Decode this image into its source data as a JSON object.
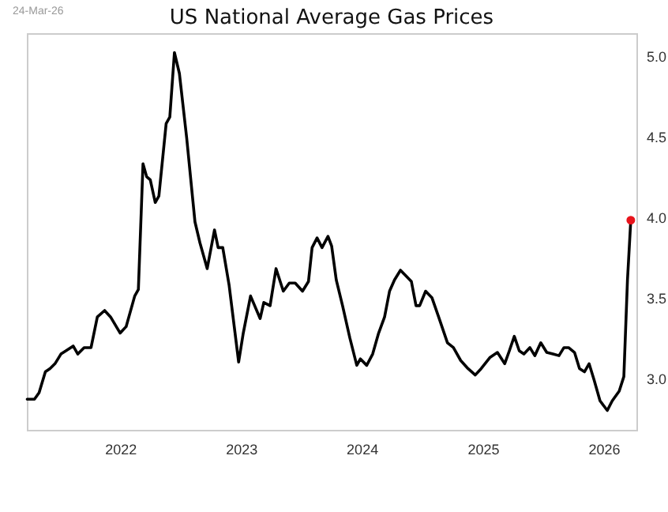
{
  "chart_data": {
    "type": "line",
    "title": "US National Average Gas Prices",
    "annotations": [
      "24-Mar-26"
    ],
    "x": [
      "2021-03-26",
      "2021-04-17",
      "2021-05-01",
      "2021-05-20",
      "2021-06-03",
      "2021-06-18",
      "2021-07-06",
      "2021-07-21",
      "2021-08-12",
      "2021-08-26",
      "2021-09-14",
      "2021-10-05",
      "2021-10-24",
      "2021-11-15",
      "2021-12-03",
      "2022-01-01",
      "2022-01-19",
      "2022-02-14",
      "2022-02-25",
      "2022-03-11",
      "2022-03-22",
      "2022-04-02",
      "2022-04-17",
      "2022-04-28",
      "2022-05-20",
      "2022-05-31",
      "2022-06-14",
      "2022-06-29",
      "2022-07-21",
      "2022-08-15",
      "2022-08-30",
      "2022-09-21",
      "2022-10-13",
      "2022-10-24",
      "2022-11-07",
      "2022-11-26",
      "2022-12-25",
      "2023-01-08",
      "2023-01-30",
      "2023-02-28",
      "2023-03-11",
      "2023-03-30",
      "2023-04-17",
      "2023-05-09",
      "2023-05-27",
      "2023-06-14",
      "2023-07-06",
      "2023-07-24",
      "2023-08-04",
      "2023-08-19",
      "2023-09-03",
      "2023-09-21",
      "2023-10-02",
      "2023-10-16",
      "2023-11-04",
      "2023-11-26",
      "2023-12-17",
      "2023-12-28",
      "2024-01-16",
      "2024-02-03",
      "2024-02-21",
      "2024-03-10",
      "2024-03-25",
      "2024-04-09",
      "2024-04-27",
      "2024-05-11",
      "2024-05-30",
      "2024-06-13",
      "2024-06-24",
      "2024-07-12",
      "2024-07-31",
      "2024-08-22",
      "2024-09-16",
      "2024-10-04",
      "2024-10-26",
      "2024-11-17",
      "2024-12-09",
      "2024-12-27",
      "2025-01-23",
      "2025-02-14",
      "2025-03-08",
      "2025-03-22",
      "2025-04-06",
      "2025-04-21",
      "2025-05-05",
      "2025-05-23",
      "2025-06-07",
      "2025-06-25",
      "2025-07-13",
      "2025-08-01",
      "2025-08-19",
      "2025-09-03",
      "2025-09-17",
      "2025-10-05",
      "2025-10-20",
      "2025-11-04",
      "2025-11-18",
      "2025-12-03",
      "2025-12-21",
      "2026-01-12",
      "2026-01-27",
      "2026-02-17",
      "2026-03-03",
      "2026-03-14",
      "2026-03-24"
    ],
    "series": [
      {
        "color": "#000000",
        "marker": "none",
        "values": [
          2.87,
          2.87,
          2.91,
          3.04,
          3.06,
          3.09,
          3.15,
          3.17,
          3.2,
          3.15,
          3.19,
          3.19,
          3.38,
          3.42,
          3.38,
          3.28,
          3.32,
          3.51,
          3.55,
          4.33,
          4.25,
          4.23,
          4.09,
          4.13,
          4.58,
          4.62,
          5.02,
          4.89,
          4.49,
          3.97,
          3.84,
          3.68,
          3.92,
          3.81,
          3.81,
          3.58,
          3.1,
          3.28,
          3.51,
          3.37,
          3.47,
          3.45,
          3.68,
          3.54,
          3.59,
          3.59,
          3.54,
          3.6,
          3.81,
          3.87,
          3.81,
          3.88,
          3.82,
          3.61,
          3.45,
          3.25,
          3.08,
          3.12,
          3.08,
          3.15,
          3.28,
          3.38,
          3.54,
          3.61,
          3.67,
          3.64,
          3.6,
          3.45,
          3.45,
          3.54,
          3.5,
          3.37,
          3.22,
          3.19,
          3.11,
          3.06,
          3.02,
          3.06,
          3.13,
          3.16,
          3.09,
          3.17,
          3.26,
          3.17,
          3.15,
          3.19,
          3.14,
          3.22,
          3.16,
          3.15,
          3.14,
          3.19,
          3.19,
          3.16,
          3.06,
          3.04,
          3.09,
          2.99,
          2.86,
          2.8,
          2.86,
          2.92,
          3.01,
          3.61,
          3.98
        ]
      },
      {
        "type": "scatter",
        "color": "#e8141c",
        "marker": "circle",
        "x": [
          "2026-03-24"
        ],
        "values": [
          3.98
        ]
      }
    ],
    "xlim": [
      "2021-03-25",
      "2026-04-10"
    ],
    "xticks": [
      {
        "value": "2022-01-01",
        "label": "2022"
      },
      {
        "value": "2023-01-01",
        "label": "2023"
      },
      {
        "value": "2024-01-01",
        "label": "2024"
      },
      {
        "value": "2025-01-01",
        "label": "2025"
      },
      {
        "value": "2026-01-01",
        "label": "2026"
      }
    ],
    "ylim": [
      2.68,
      5.14
    ],
    "yticks": [
      {
        "value": 3,
        "label": "3.0"
      },
      3.5,
      {
        "value": 4,
        "label": "4.0"
      },
      4.5,
      {
        "value": 5,
        "label": "5.0"
      }
    ],
    "line_style": "solid"
  }
}
